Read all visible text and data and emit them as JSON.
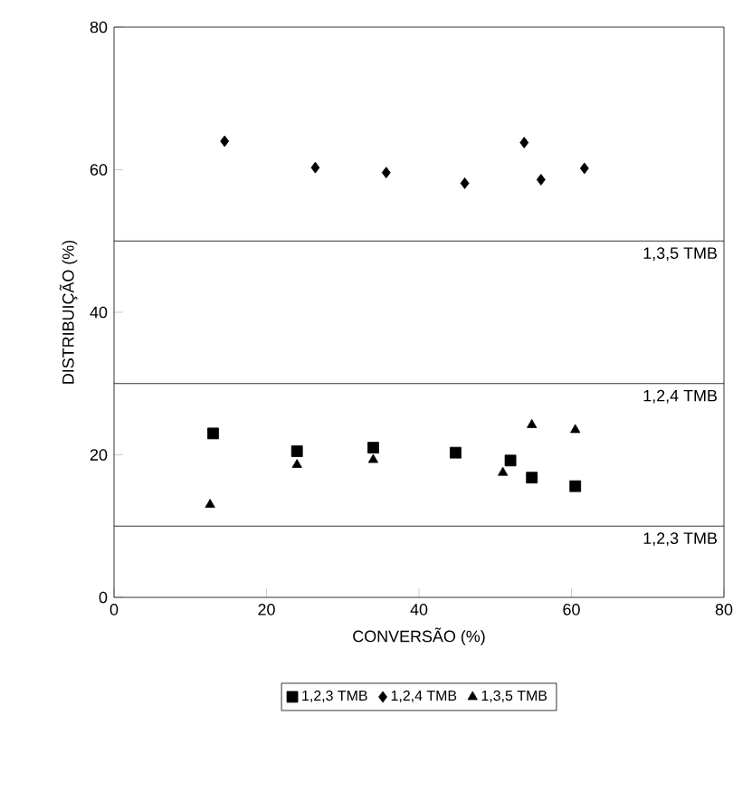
{
  "chart_data": {
    "type": "scatter",
    "xlabel": "CONVERSÃO (%)",
    "ylabel": "DISTRIBUIÇÃO (%)",
    "xlim": [
      0,
      80
    ],
    "ylim": [
      0,
      80
    ],
    "xticks": [
      0,
      20,
      40,
      60,
      80
    ],
    "yticks": [
      0,
      20,
      40,
      60,
      80
    ],
    "series": [
      {
        "name": "1,2,3 TMB",
        "color": "#000000",
        "marker": "square",
        "x": [
          13,
          24,
          34,
          44.8,
          52,
          54.8,
          60.5
        ],
        "values": [
          23,
          20.5,
          21,
          20.3,
          19.2,
          16.8,
          15.6
        ]
      },
      {
        "name": "1,2,4 TMB",
        "color": "#000000",
        "marker": "diamond",
        "x": [
          14.5,
          26.4,
          35.7,
          46,
          53.8,
          56,
          61.7
        ],
        "values": [
          64,
          60.3,
          59.6,
          58.1,
          63.8,
          58.6,
          60.2
        ]
      },
      {
        "name": "1,3,5 TMB",
        "color": "#000000",
        "marker": "triangle",
        "x": [
          12.6,
          24,
          34,
          44.8,
          51,
          54.8,
          60.5
        ],
        "values": [
          13,
          18.6,
          19.3,
          null,
          17.5,
          24.2,
          23.5
        ]
      }
    ],
    "ref_lines": [
      {
        "axis": "y",
        "value": 50,
        "label": "1,3,5 TMB"
      },
      {
        "axis": "y",
        "value": 30,
        "label": "1,2,4 TMB"
      },
      {
        "axis": "y",
        "value": 10,
        "label": "1,2,3 TMB"
      }
    ],
    "legend": "bottom"
  }
}
